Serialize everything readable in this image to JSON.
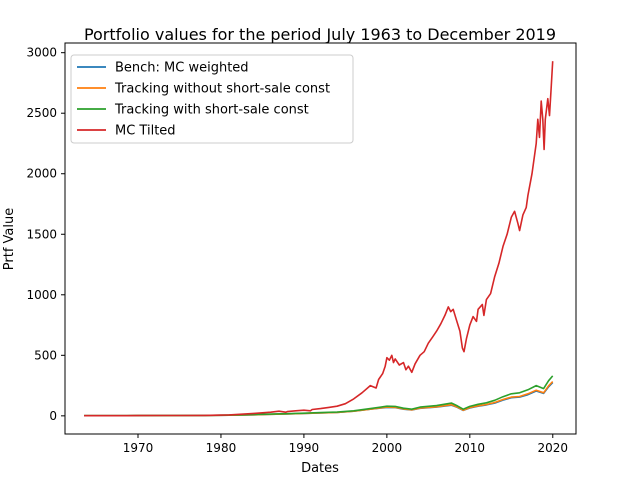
{
  "chart_data": {
    "type": "line",
    "title": "Portfolio values for the period July 1963 to December 2019",
    "xlabel": "Dates",
    "ylabel": "Prtf Value",
    "xlim": [
      1961.2,
      2022.8
    ],
    "ylim": [
      -150,
      3080
    ],
    "xticks": [
      1970,
      1980,
      1990,
      2000,
      2010,
      2020
    ],
    "yticks": [
      0,
      500,
      1000,
      1500,
      2000,
      2500,
      3000
    ],
    "grid": false,
    "legend_position": "top-left",
    "series": [
      {
        "name": "Bench: MC weighted",
        "color": "#1f77b4",
        "points": [
          [
            1963.5,
            1
          ],
          [
            1966,
            1.4
          ],
          [
            1970,
            1.8
          ],
          [
            1974,
            2.2
          ],
          [
            1978,
            3
          ],
          [
            1980,
            4.5
          ],
          [
            1982,
            6
          ],
          [
            1984,
            9
          ],
          [
            1986,
            13
          ],
          [
            1988,
            16
          ],
          [
            1990,
            20
          ],
          [
            1992,
            24
          ],
          [
            1994,
            28
          ],
          [
            1996,
            38
          ],
          [
            1998,
            55
          ],
          [
            2000,
            70
          ],
          [
            2001,
            68
          ],
          [
            2002,
            55
          ],
          [
            2003,
            48
          ],
          [
            2004,
            62
          ],
          [
            2006,
            72
          ],
          [
            2007.8,
            88
          ],
          [
            2008.5,
            70
          ],
          [
            2009.2,
            45
          ],
          [
            2010,
            65
          ],
          [
            2011,
            80
          ],
          [
            2012,
            90
          ],
          [
            2013,
            105
          ],
          [
            2014,
            130
          ],
          [
            2015,
            150
          ],
          [
            2016,
            155
          ],
          [
            2017,
            175
          ],
          [
            2018,
            205
          ],
          [
            2018.9,
            185
          ],
          [
            2019.5,
            240
          ],
          [
            2019.99,
            275
          ]
        ]
      },
      {
        "name": "Tracking without short-sale const",
        "color": "#ff7f0e",
        "points": [
          [
            1963.5,
            1
          ],
          [
            1966,
            1.4
          ],
          [
            1970,
            1.8
          ],
          [
            1974,
            2.2
          ],
          [
            1978,
            3
          ],
          [
            1980,
            4.5
          ],
          [
            1982,
            6
          ],
          [
            1984,
            9
          ],
          [
            1986,
            13
          ],
          [
            1988,
            16
          ],
          [
            1990,
            20
          ],
          [
            1992,
            24
          ],
          [
            1994,
            28
          ],
          [
            1996,
            38
          ],
          [
            1998,
            55
          ],
          [
            2000,
            72
          ],
          [
            2001,
            70
          ],
          [
            2002,
            57
          ],
          [
            2003,
            50
          ],
          [
            2004,
            64
          ],
          [
            2006,
            75
          ],
          [
            2007.8,
            92
          ],
          [
            2008.5,
            72
          ],
          [
            2009.2,
            47
          ],
          [
            2010,
            68
          ],
          [
            2011,
            83
          ],
          [
            2012,
            94
          ],
          [
            2013,
            110
          ],
          [
            2014,
            135
          ],
          [
            2015,
            155
          ],
          [
            2016,
            160
          ],
          [
            2017,
            182
          ],
          [
            2018,
            212
          ],
          [
            2018.9,
            190
          ],
          [
            2019.5,
            248
          ],
          [
            2019.99,
            283
          ]
        ]
      },
      {
        "name": "Tracking with short-sale const",
        "color": "#2ca02c",
        "points": [
          [
            1963.5,
            1
          ],
          [
            1966,
            1.5
          ],
          [
            1970,
            2
          ],
          [
            1974,
            2.5
          ],
          [
            1978,
            3.5
          ],
          [
            1980,
            5
          ],
          [
            1982,
            7
          ],
          [
            1984,
            10
          ],
          [
            1986,
            14
          ],
          [
            1988,
            18
          ],
          [
            1990,
            22
          ],
          [
            1992,
            27
          ],
          [
            1994,
            31
          ],
          [
            1996,
            42
          ],
          [
            1998,
            60
          ],
          [
            2000,
            80
          ],
          [
            2001,
            78
          ],
          [
            2002,
            63
          ],
          [
            2003,
            55
          ],
          [
            2004,
            72
          ],
          [
            2006,
            85
          ],
          [
            2007.8,
            105
          ],
          [
            2008.5,
            82
          ],
          [
            2009.2,
            55
          ],
          [
            2010,
            78
          ],
          [
            2011,
            95
          ],
          [
            2012,
            108
          ],
          [
            2013,
            128
          ],
          [
            2014,
            158
          ],
          [
            2015,
            182
          ],
          [
            2016,
            190
          ],
          [
            2017,
            215
          ],
          [
            2018,
            250
          ],
          [
            2018.9,
            225
          ],
          [
            2019.5,
            290
          ],
          [
            2019.99,
            330
          ]
        ]
      },
      {
        "name": "MC Tilted",
        "color": "#d62728",
        "points": [
          [
            1963.5,
            1
          ],
          [
            1966,
            1.2
          ],
          [
            1968,
            1.5
          ],
          [
            1970,
            1.8
          ],
          [
            1973,
            2.5
          ],
          [
            1975,
            3
          ],
          [
            1978,
            4
          ],
          [
            1980,
            6
          ],
          [
            1981,
            8
          ],
          [
            1982,
            12
          ],
          [
            1983,
            16
          ],
          [
            1984,
            20
          ],
          [
            1985,
            25
          ],
          [
            1986,
            30
          ],
          [
            1987,
            38
          ],
          [
            1987.8,
            30
          ],
          [
            1988,
            35
          ],
          [
            1989,
            42
          ],
          [
            1990,
            47
          ],
          [
            1990.8,
            42
          ],
          [
            1991,
            52
          ],
          [
            1992,
            60
          ],
          [
            1993,
            70
          ],
          [
            1994,
            80
          ],
          [
            1995,
            100
          ],
          [
            1996,
            140
          ],
          [
            1997,
            190
          ],
          [
            1998,
            250
          ],
          [
            1998.7,
            230
          ],
          [
            1999,
            300
          ],
          [
            1999.5,
            350
          ],
          [
            1999.8,
            410
          ],
          [
            2000,
            480
          ],
          [
            2000.3,
            460
          ],
          [
            2000.6,
            500
          ],
          [
            2000.8,
            440
          ],
          [
            2001,
            470
          ],
          [
            2001.5,
            420
          ],
          [
            2002,
            440
          ],
          [
            2002.3,
            380
          ],
          [
            2002.6,
            410
          ],
          [
            2003,
            360
          ],
          [
            2003.4,
            430
          ],
          [
            2004,
            500
          ],
          [
            2004.5,
            530
          ],
          [
            2005,
            600
          ],
          [
            2005.5,
            650
          ],
          [
            2006,
            700
          ],
          [
            2006.5,
            760
          ],
          [
            2007,
            830
          ],
          [
            2007.4,
            900
          ],
          [
            2007.7,
            860
          ],
          [
            2008,
            880
          ],
          [
            2008.4,
            790
          ],
          [
            2008.8,
            700
          ],
          [
            2009.1,
            560
          ],
          [
            2009.3,
            530
          ],
          [
            2009.6,
            640
          ],
          [
            2010,
            750
          ],
          [
            2010.4,
            820
          ],
          [
            2010.8,
            780
          ],
          [
            2011,
            880
          ],
          [
            2011.5,
            920
          ],
          [
            2011.7,
            830
          ],
          [
            2012,
            960
          ],
          [
            2012.5,
            1010
          ],
          [
            2013,
            1150
          ],
          [
            2013.5,
            1260
          ],
          [
            2014,
            1400
          ],
          [
            2014.5,
            1500
          ],
          [
            2015,
            1640
          ],
          [
            2015.4,
            1690
          ],
          [
            2015.8,
            1590
          ],
          [
            2016,
            1530
          ],
          [
            2016.4,
            1660
          ],
          [
            2016.8,
            1720
          ],
          [
            2017,
            1820
          ],
          [
            2017.5,
            2000
          ],
          [
            2018,
            2250
          ],
          [
            2018.2,
            2450
          ],
          [
            2018.4,
            2300
          ],
          [
            2018.6,
            2600
          ],
          [
            2018.8,
            2450
          ],
          [
            2018.95,
            2200
          ],
          [
            2019.1,
            2450
          ],
          [
            2019.4,
            2620
          ],
          [
            2019.6,
            2480
          ],
          [
            2019.8,
            2700
          ],
          [
            2019.99,
            2930
          ]
        ]
      }
    ]
  }
}
